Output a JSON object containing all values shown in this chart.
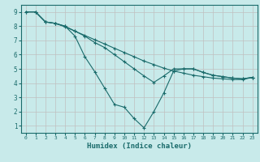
{
  "xlabel": "Humidex (Indice chaleur)",
  "bg_color": "#c8eaea",
  "grid_color": "#c0c0c0",
  "line_color": "#1a6b6b",
  "xlim": [
    -0.5,
    23.5
  ],
  "ylim": [
    0.5,
    9.5
  ],
  "xticks": [
    0,
    1,
    2,
    3,
    4,
    5,
    6,
    7,
    8,
    9,
    10,
    11,
    12,
    13,
    14,
    15,
    16,
    17,
    18,
    19,
    20,
    21,
    22,
    23
  ],
  "yticks": [
    1,
    2,
    3,
    4,
    5,
    6,
    7,
    8,
    9
  ],
  "line1_x": [
    0,
    1,
    2,
    3,
    4,
    5,
    6,
    7,
    8,
    9,
    10,
    11,
    12,
    13,
    14,
    15,
    16,
    17,
    18,
    19,
    20,
    21,
    22,
    23
  ],
  "line1_y": [
    9.0,
    9.0,
    8.3,
    8.2,
    7.95,
    7.65,
    7.35,
    7.05,
    6.75,
    6.45,
    6.15,
    5.85,
    5.55,
    5.3,
    5.05,
    4.85,
    4.7,
    4.55,
    4.45,
    4.35,
    4.3,
    4.25,
    4.25,
    4.4
  ],
  "line2_x": [
    0,
    1,
    2,
    3,
    4,
    5,
    6,
    7,
    8,
    9,
    10,
    11,
    12,
    13,
    14,
    15,
    16,
    17,
    18,
    19,
    20,
    21,
    22,
    23
  ],
  "line2_y": [
    9.0,
    9.0,
    8.3,
    8.2,
    8.0,
    7.65,
    7.3,
    6.85,
    6.5,
    6.0,
    5.5,
    5.0,
    4.5,
    4.05,
    4.5,
    5.0,
    5.0,
    5.0,
    4.75,
    4.55,
    4.45,
    4.35,
    4.3,
    4.4
  ],
  "line3_x": [
    1,
    2,
    3,
    4,
    5,
    6,
    7,
    8,
    9,
    10,
    11,
    12,
    13,
    14,
    15,
    16,
    17,
    18,
    19,
    20,
    21,
    22,
    23
  ],
  "line3_y": [
    9.0,
    8.3,
    8.2,
    8.0,
    7.3,
    5.85,
    4.8,
    3.65,
    2.5,
    2.3,
    1.5,
    0.85,
    2.0,
    3.3,
    4.85,
    5.0,
    5.0,
    4.75,
    4.55,
    4.45,
    4.35,
    4.3,
    4.4
  ]
}
